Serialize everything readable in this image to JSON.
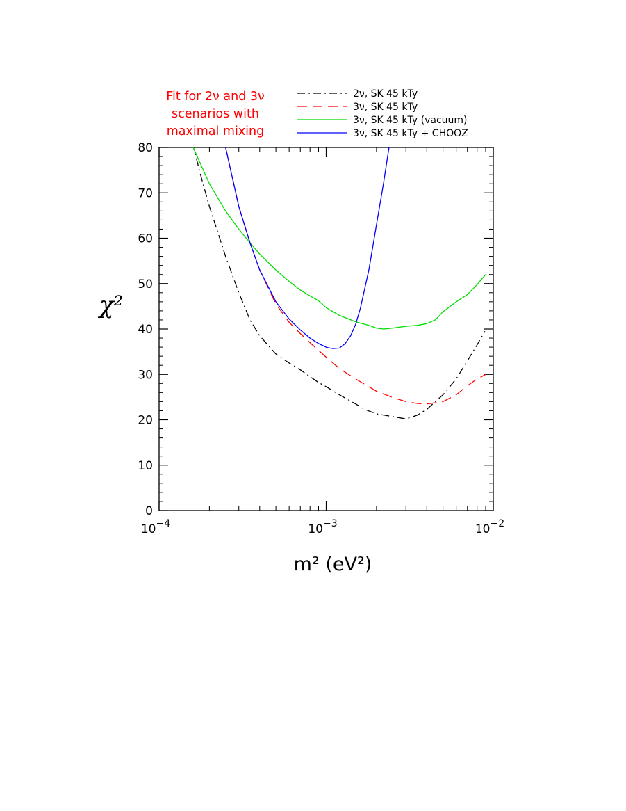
{
  "chart_data": {
    "type": "line",
    "annotation": [
      "Fit for 2ν and 3ν",
      "scenarios  with",
      "maximal mixing"
    ],
    "xlabel": "m²  (eV²)",
    "ylabel": "χ²",
    "xscale": "log",
    "xlim": [
      0.0001,
      0.01
    ],
    "ylim": [
      0,
      80
    ],
    "x_ticks": [
      {
        "value": 0.0001,
        "base": "10",
        "exp": "−4"
      },
      {
        "value": 0.001,
        "base": "10",
        "exp": "−3"
      },
      {
        "value": 0.01,
        "base": "10",
        "exp": "−2"
      }
    ],
    "y_ticks": [
      0,
      10,
      20,
      30,
      40,
      50,
      60,
      70,
      80
    ],
    "grid": false,
    "legend_position": "top-right",
    "series": [
      {
        "name": "2ν,  SK 45 kTy",
        "color": "#000000",
        "style": "dashdot",
        "x": [
          0.000158,
          0.00018,
          0.0002,
          0.00025,
          0.0003,
          0.00035,
          0.0004,
          0.0005,
          0.0006,
          0.0007,
          0.0008,
          0.0009,
          0.001,
          0.0012,
          0.0015,
          0.0017,
          0.002,
          0.0025,
          0.003,
          0.0035,
          0.004,
          0.005,
          0.006,
          0.007,
          0.008,
          0.0089
        ],
        "y": [
          81,
          73,
          67,
          56,
          48,
          42,
          38.5,
          34.5,
          32.5,
          31,
          29.5,
          28.2,
          27.3,
          25.5,
          23.5,
          22.3,
          21.3,
          20.7,
          20.2,
          21,
          22.3,
          25.5,
          29,
          33,
          36.5,
          39.5
        ]
      },
      {
        "name": "3ν,  SK 45 kTy",
        "color": "#ff0000",
        "style": "dashed",
        "x": [
          0.00025,
          0.0003,
          0.00035,
          0.0004,
          0.0005,
          0.0006,
          0.0007,
          0.0008,
          0.0009,
          0.001,
          0.0012,
          0.0015,
          0.002,
          0.0025,
          0.003,
          0.0035,
          0.004,
          0.005,
          0.006,
          0.007,
          0.008,
          0.009
        ],
        "y": [
          80,
          67,
          59,
          53,
          45.5,
          41.5,
          39,
          37,
          35.3,
          33.8,
          31.3,
          29,
          26.3,
          24.9,
          24,
          23.6,
          23.5,
          24,
          25.5,
          27.5,
          29,
          30
        ]
      },
      {
        "name": "3ν,  SK 45 kTy (vacuum)",
        "color": "#00dd00",
        "style": "solid",
        "x": [
          0.00016,
          0.0002,
          0.00025,
          0.0003,
          0.00035,
          0.0004,
          0.0005,
          0.0006,
          0.0007,
          0.0008,
          0.0009,
          0.001,
          0.0012,
          0.0015,
          0.0018,
          0.002,
          0.0022,
          0.0025,
          0.003,
          0.0035,
          0.004,
          0.0045,
          0.005,
          0.006,
          0.007,
          0.008,
          0.009
        ],
        "y": [
          80,
          72,
          66,
          62,
          59,
          56.5,
          53,
          50.5,
          48.6,
          47.3,
          46.2,
          44.7,
          43,
          41.6,
          40.8,
          40.2,
          40,
          40.2,
          40.6,
          40.8,
          41.2,
          42,
          43.8,
          46,
          47.6,
          49.8,
          52
        ]
      },
      {
        "name": "3ν,  SK 45 kTy + CHOOZ",
        "color": "#0000ff",
        "style": "solid",
        "x": [
          0.00025,
          0.0003,
          0.00035,
          0.0004,
          0.0005,
          0.0006,
          0.0007,
          0.0008,
          0.0009,
          0.001,
          0.00105,
          0.0011,
          0.0012,
          0.0013,
          0.0014,
          0.0015,
          0.0016,
          0.0018,
          0.002,
          0.0022,
          0.0024
        ],
        "y": [
          80,
          67,
          59,
          53,
          46,
          42.2,
          39.8,
          38,
          36.8,
          36,
          35.8,
          35.7,
          35.8,
          36.8,
          38.5,
          41,
          44.5,
          53,
          63,
          72,
          81
        ]
      }
    ]
  }
}
